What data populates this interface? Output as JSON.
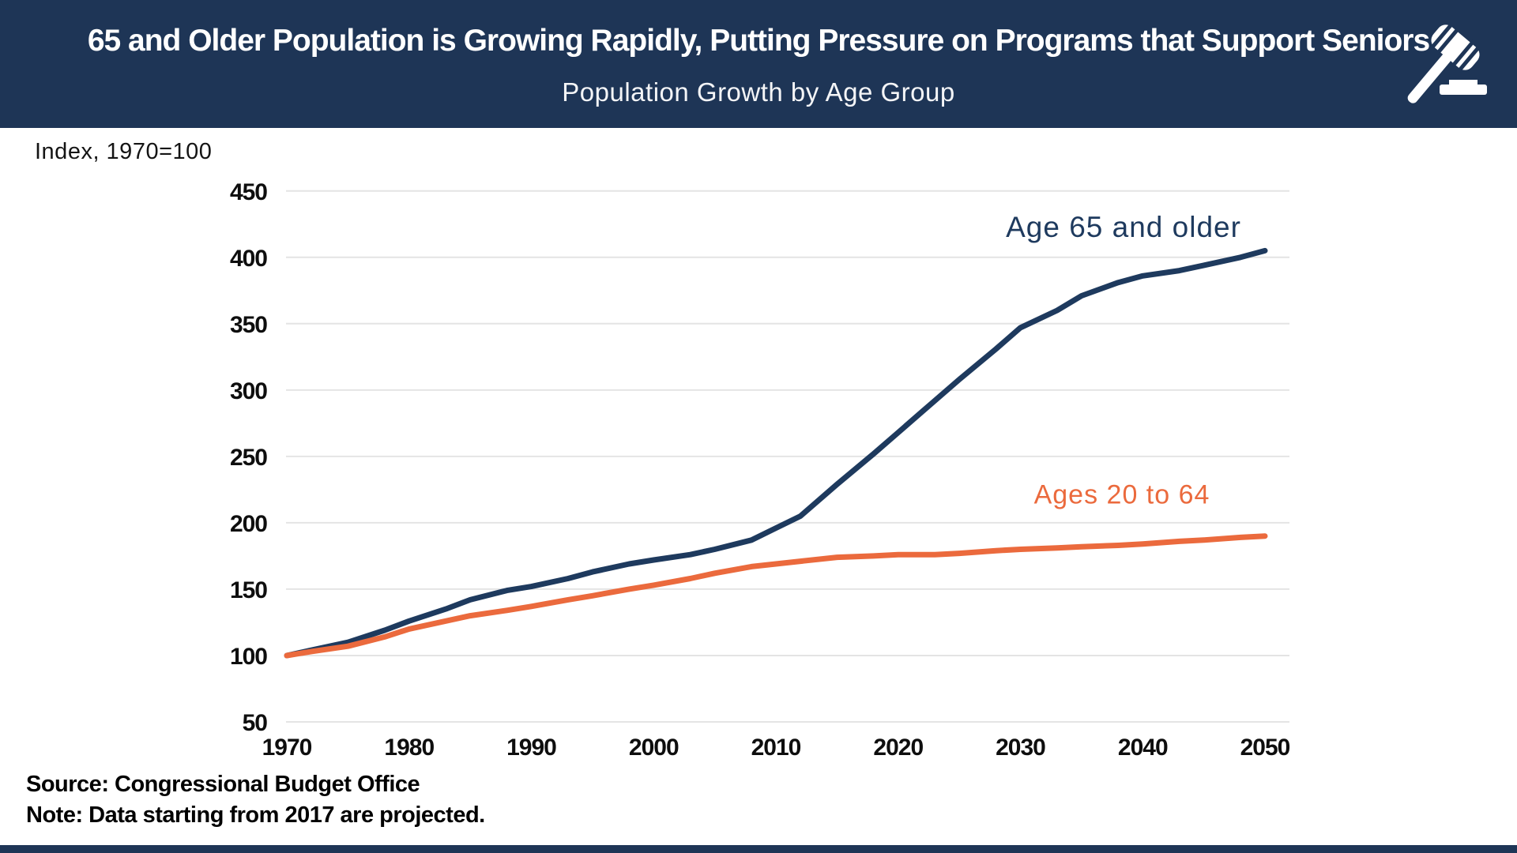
{
  "header": {
    "title": "65 and Older Population is Growing Rapidly, Putting Pressure on Programs that Support Seniors",
    "subtitle": "Population Growth by Age Group",
    "icon": "gavel-icon"
  },
  "axis_note": "Index, 1970=100",
  "footer_source": "Source: Congressional Budget Office",
  "footer_note": "Note: Data starting from 2017 are projected.",
  "colors": {
    "header_bg": "#1E3556",
    "navy_line": "#1E3A5E",
    "orange_line": "#EB6A3D",
    "gridline": "#E4E4E4",
    "tick_text": "#0E0E0E",
    "background": "#FFFFFF"
  },
  "chart_data": {
    "type": "line",
    "title": "Population Growth by Age Group",
    "index_note": "Index, 1970=100",
    "xlabel": "",
    "ylabel": "Index, 1970=100",
    "xlim": [
      1970,
      2052
    ],
    "ylim": [
      50,
      457
    ],
    "x_ticks": [
      1970,
      1980,
      1990,
      2000,
      2010,
      2020,
      2030,
      2040,
      2050
    ],
    "y_ticks": [
      50,
      100,
      150,
      200,
      250,
      300,
      350,
      400,
      450
    ],
    "grid": "horizontal",
    "legend_position": "inline-labels",
    "projection_note": "Data starting from 2017 are projected",
    "series": [
      {
        "name": "Age 65 and older",
        "color": "#1E3A5E",
        "points": [
          [
            1970,
            100
          ],
          [
            1972,
            104
          ],
          [
            1975,
            110
          ],
          [
            1978,
            119
          ],
          [
            1980,
            126
          ],
          [
            1983,
            135
          ],
          [
            1985,
            142
          ],
          [
            1988,
            149
          ],
          [
            1990,
            152
          ],
          [
            1993,
            158
          ],
          [
            1995,
            163
          ],
          [
            1998,
            169
          ],
          [
            2000,
            172
          ],
          [
            2003,
            176
          ],
          [
            2005,
            180
          ],
          [
            2008,
            187
          ],
          [
            2010,
            196
          ],
          [
            2012,
            205
          ],
          [
            2015,
            229
          ],
          [
            2018,
            252
          ],
          [
            2020,
            268
          ],
          [
            2022,
            284
          ],
          [
            2025,
            308
          ],
          [
            2028,
            331
          ],
          [
            2030,
            347
          ],
          [
            2033,
            360
          ],
          [
            2035,
            371
          ],
          [
            2038,
            381
          ],
          [
            2040,
            386
          ],
          [
            2043,
            390
          ],
          [
            2045,
            394
          ],
          [
            2048,
            400
          ],
          [
            2050,
            405
          ]
        ]
      },
      {
        "name": "Ages 20 to 64",
        "color": "#EB6A3D",
        "points": [
          [
            1970,
            100
          ],
          [
            1972,
            103
          ],
          [
            1975,
            107
          ],
          [
            1978,
            114
          ],
          [
            1980,
            120
          ],
          [
            1983,
            126
          ],
          [
            1985,
            130
          ],
          [
            1988,
            134
          ],
          [
            1990,
            137
          ],
          [
            1993,
            142
          ],
          [
            1995,
            145
          ],
          [
            1998,
            150
          ],
          [
            2000,
            153
          ],
          [
            2003,
            158
          ],
          [
            2005,
            162
          ],
          [
            2008,
            167
          ],
          [
            2010,
            169
          ],
          [
            2012,
            171
          ],
          [
            2015,
            174
          ],
          [
            2018,
            175
          ],
          [
            2020,
            176
          ],
          [
            2023,
            176
          ],
          [
            2025,
            177
          ],
          [
            2028,
            179
          ],
          [
            2030,
            180
          ],
          [
            2033,
            181
          ],
          [
            2035,
            182
          ],
          [
            2038,
            183
          ],
          [
            2040,
            184
          ],
          [
            2043,
            186
          ],
          [
            2045,
            187
          ],
          [
            2048,
            189
          ],
          [
            2050,
            190
          ]
        ]
      }
    ]
  }
}
